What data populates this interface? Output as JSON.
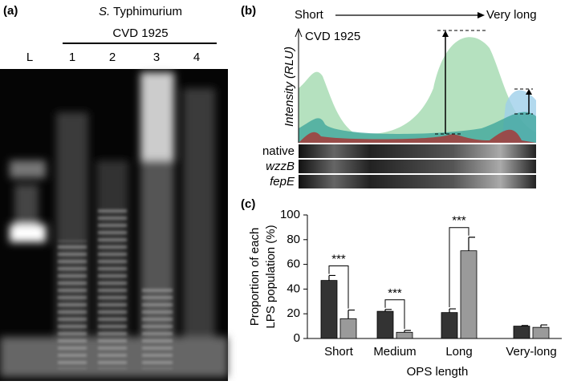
{
  "panel_a": {
    "label": "(a)",
    "organism_genus": "S.",
    "organism_serovar": "Typhimurium",
    "strain": "CVD 1925",
    "lanes": [
      "L",
      "1",
      "2",
      "3",
      "4"
    ]
  },
  "panel_b": {
    "label": "(b)",
    "arrow_start": "Short",
    "arrow_end": "Very long",
    "strain": "CVD 1925",
    "ylabel": "Intensity (RLU)",
    "strips": [
      "native",
      "wzzB",
      "fepE"
    ]
  },
  "panel_c": {
    "label": "(c)",
    "chart_data": {
      "type": "bar",
      "ylabel": [
        "Proportion of each",
        "LPS population (%)"
      ],
      "xlabel": "OPS length",
      "categories": [
        "Short",
        "Medium",
        "Long",
        "Very-long"
      ],
      "series": [
        {
          "color": "#333333",
          "values": [
            47,
            22,
            21,
            10
          ],
          "errors": [
            4,
            1.5,
            3,
            0.5
          ]
        },
        {
          "color": "#9a9a9a",
          "values": [
            16,
            5,
            71,
            9
          ],
          "errors": [
            7,
            1.5,
            11,
            2
          ]
        }
      ],
      "ylim": [
        0,
        100
      ],
      "yticks": [
        0,
        20,
        40,
        60,
        80,
        100
      ],
      "annotations": [
        "***",
        "***",
        "***"
      ]
    }
  }
}
